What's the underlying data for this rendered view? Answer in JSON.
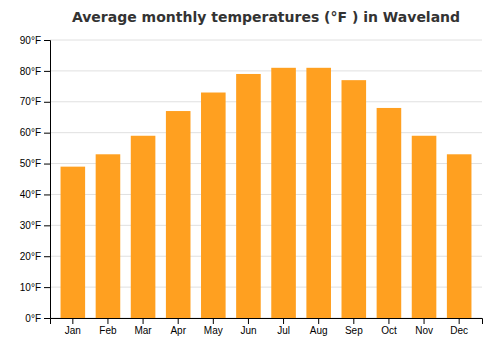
{
  "chart_data": {
    "type": "bar",
    "title": "Average monthly temperatures (°F ) in Waveland",
    "categories": [
      "Jan",
      "Feb",
      "Mar",
      "Apr",
      "May",
      "Jun",
      "Jul",
      "Aug",
      "Sep",
      "Oct",
      "Nov",
      "Dec"
    ],
    "values": [
      49,
      53,
      59,
      67,
      73,
      79,
      81,
      81,
      77,
      68,
      59,
      53
    ],
    "color": "#FFA020",
    "ylim": [
      0,
      90
    ],
    "yticks": [
      {
        "value": 0,
        "label": "0°F"
      },
      {
        "value": 10,
        "label": "10°F"
      },
      {
        "value": 20,
        "label": "20°F"
      },
      {
        "value": 30,
        "label": "30°F"
      },
      {
        "value": 40,
        "label": "40°F"
      },
      {
        "value": 50,
        "label": "50°F"
      },
      {
        "value": 60,
        "label": "60°F"
      },
      {
        "value": 70,
        "label": "70°F"
      },
      {
        "value": 80,
        "label": "80°F"
      },
      {
        "value": 90,
        "label": "90°F"
      }
    ],
    "grid": true
  }
}
